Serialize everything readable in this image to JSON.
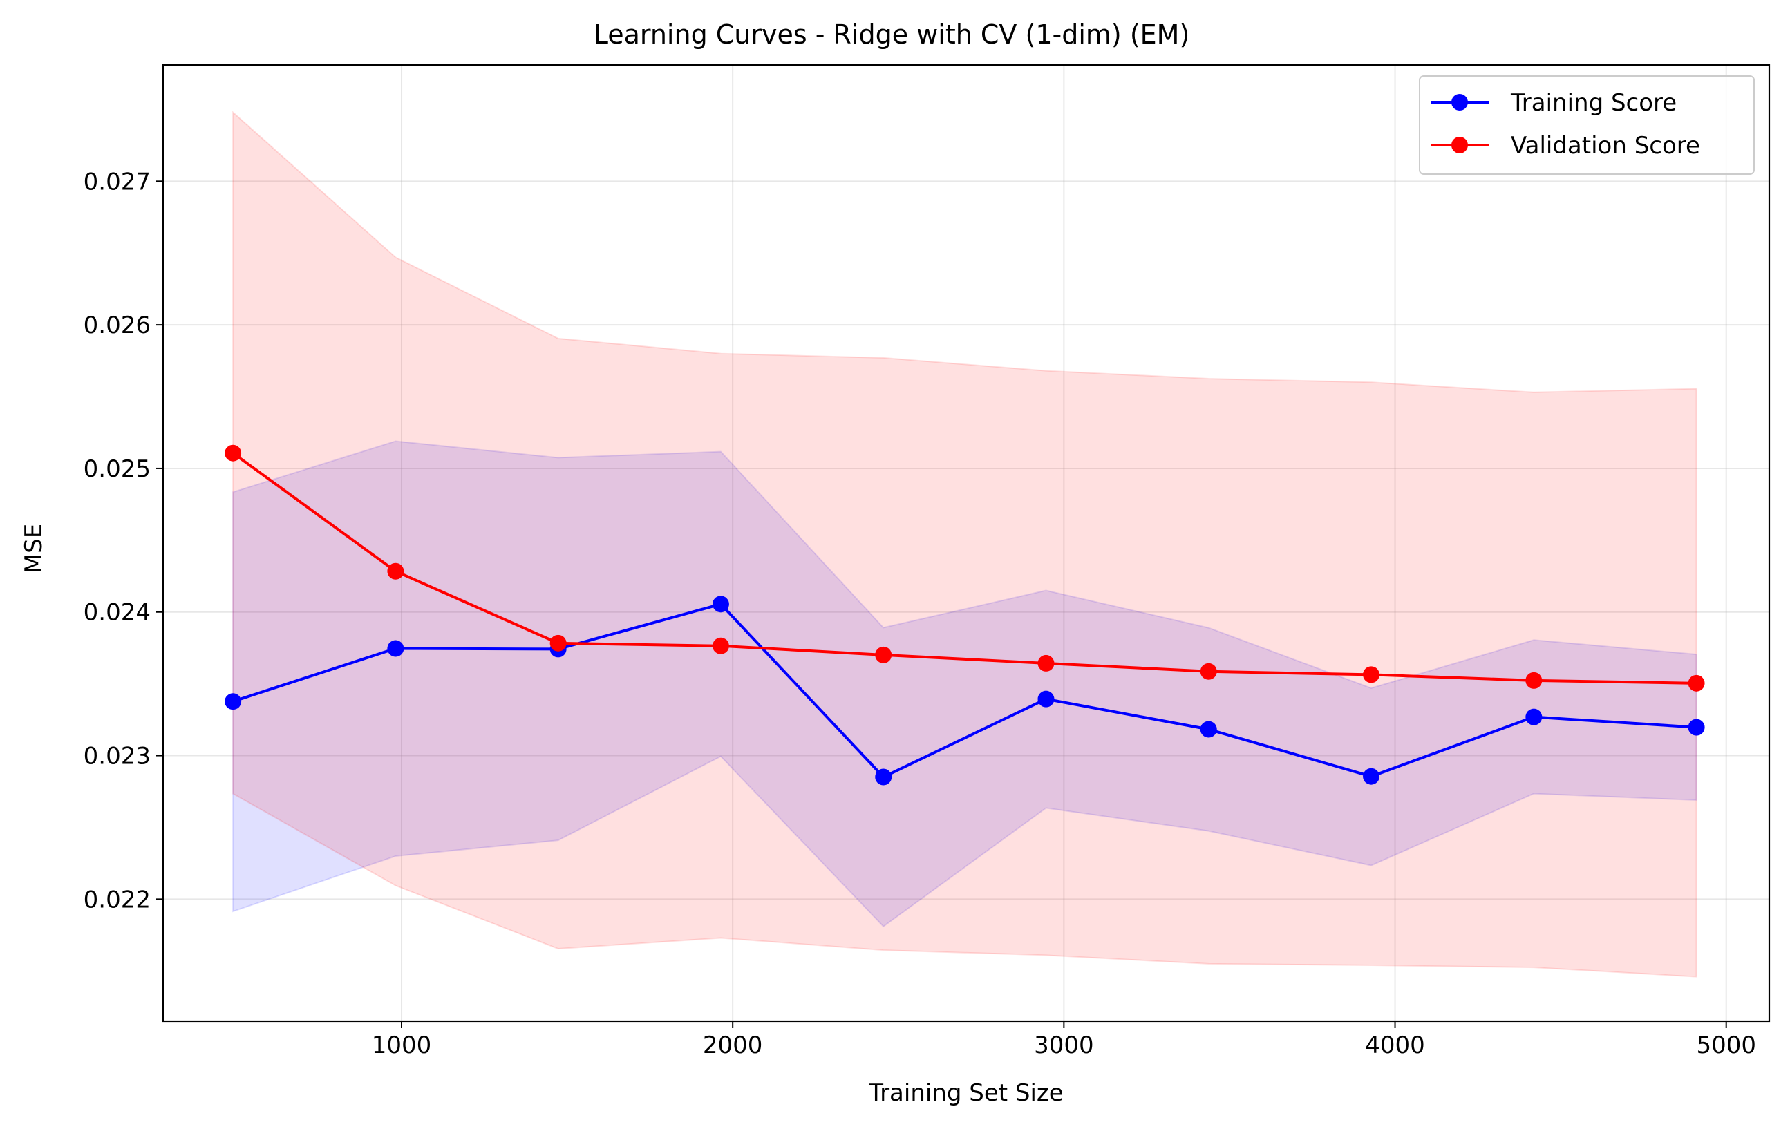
{
  "chart_data": {
    "type": "line",
    "title": "Learning Curves - Ridge with CV (1-dim) (EM)",
    "xlabel": "Training Set Size",
    "ylabel": "MSE",
    "xlim": [
      280,
      5130
    ],
    "ylim": [
      0.02115,
      0.02781
    ],
    "xticks": [
      1000,
      2000,
      3000,
      4000,
      5000
    ],
    "xtick_labels": [
      "1000",
      "2000",
      "3000",
      "4000",
      "5000"
    ],
    "yticks": [
      0.022,
      0.023,
      0.024,
      0.025,
      0.026,
      0.027
    ],
    "ytick_labels": [
      "0.022",
      "0.023",
      "0.024",
      "0.025",
      "0.026",
      "0.027"
    ],
    "grid": true,
    "legend_position": "top-right",
    "x": [
      491,
      982,
      1473,
      1964,
      2455,
      2946,
      3437,
      3928,
      4419,
      4910
    ],
    "series": [
      {
        "name": "Training Score",
        "color": "#0000ff",
        "band_color": "#0000ff",
        "values": [
          0.023377,
          0.023746,
          0.023742,
          0.024055,
          0.022851,
          0.023394,
          0.023183,
          0.022855,
          0.023269,
          0.023197
        ],
        "upper": [
          0.024835,
          0.02519,
          0.025075,
          0.025117,
          0.023891,
          0.02415,
          0.02389,
          0.02347,
          0.023805,
          0.023705
        ],
        "lower": [
          0.021915,
          0.0223,
          0.02241,
          0.022995,
          0.02181,
          0.022635,
          0.022475,
          0.022235,
          0.022735,
          0.02269
        ]
      },
      {
        "name": "Validation Score",
        "color": "#ff0000",
        "band_color": "#ff0000",
        "values": [
          0.025107,
          0.024284,
          0.023783,
          0.023764,
          0.023701,
          0.023643,
          0.023586,
          0.023564,
          0.023523,
          0.023504
        ],
        "upper": [
          0.02748,
          0.02647,
          0.025905,
          0.0258,
          0.02577,
          0.02568,
          0.025625,
          0.0256,
          0.02553,
          0.025555
        ],
        "lower": [
          0.022735,
          0.022095,
          0.021655,
          0.02173,
          0.021645,
          0.02161,
          0.02155,
          0.02154,
          0.021525,
          0.02146
        ]
      }
    ]
  }
}
